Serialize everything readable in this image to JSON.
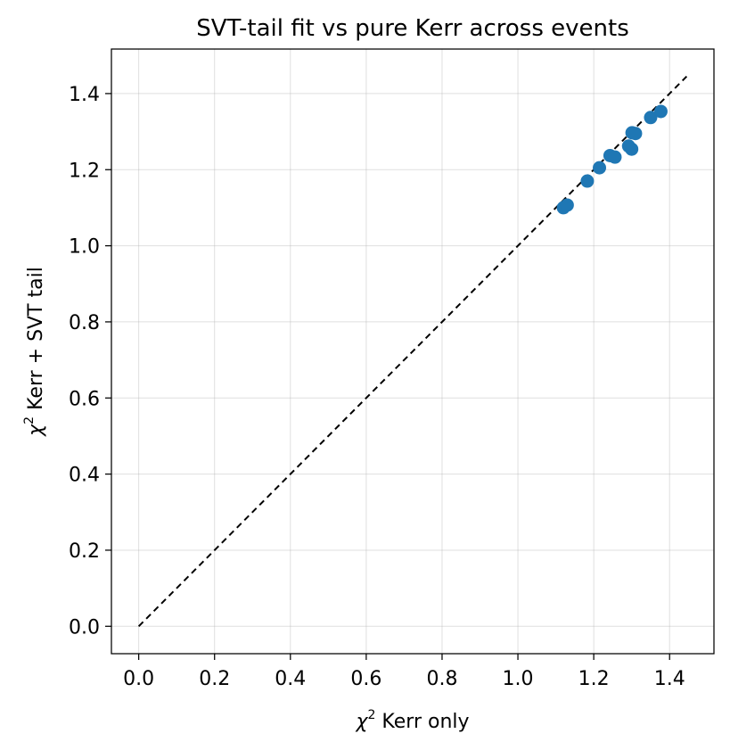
{
  "chart_data": {
    "type": "scatter",
    "title": "SVT-tail fit vs pure Kerr across events",
    "xlabel": {
      "symbol": "χ",
      "sup": "2",
      "text": " Kerr only"
    },
    "ylabel": {
      "symbol": "χ",
      "sup": "2",
      "text": " Kerr + SVT tail"
    },
    "xlim": [
      -0.072,
      1.517
    ],
    "ylim": [
      -0.072,
      1.517
    ],
    "xticks": [
      "0.0",
      "0.2",
      "0.4",
      "0.6",
      "0.8",
      "1.0",
      "1.2",
      "1.4"
    ],
    "yticks": [
      "0.0",
      "0.2",
      "0.4",
      "0.6",
      "0.8",
      "1.0",
      "1.2",
      "1.4"
    ],
    "grid": true,
    "reference_line": {
      "style": "dashed",
      "from": [
        0,
        0
      ],
      "to": [
        1.445,
        1.445
      ]
    },
    "series": [
      {
        "color": "#1f77b4",
        "x": [
          1.12,
          1.13,
          1.183,
          1.215,
          1.243,
          1.256,
          1.292,
          1.3,
          1.301,
          1.31,
          1.35,
          1.377
        ],
        "y": [
          1.1,
          1.107,
          1.17,
          1.205,
          1.237,
          1.233,
          1.262,
          1.254,
          1.297,
          1.295,
          1.337,
          1.353
        ]
      }
    ]
  }
}
